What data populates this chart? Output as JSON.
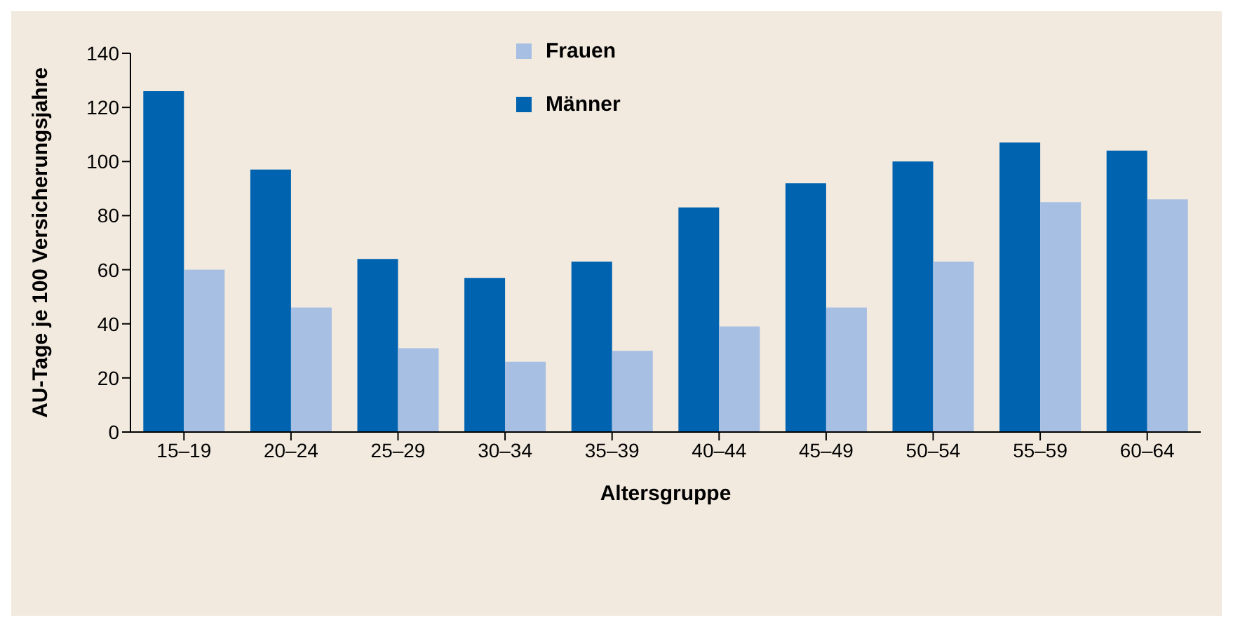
{
  "chart_data": {
    "type": "bar",
    "xlabel": "Altersgruppe",
    "ylabel": "AU-Tage je 100 Versicherungsjahre",
    "categories": [
      "15–19",
      "20–24",
      "25–29",
      "30–34",
      "35–39",
      "40–44",
      "45–49",
      "50–54",
      "55–59",
      "60–64"
    ],
    "series": [
      {
        "name": "Männer",
        "color": "#0063b0",
        "values": [
          126,
          97,
          64,
          57,
          63,
          83,
          92,
          100,
          107,
          104
        ]
      },
      {
        "name": "Frauen",
        "color": "#a7bfe3",
        "values": [
          60,
          46,
          31,
          26,
          30,
          39,
          46,
          63,
          85,
          86
        ]
      }
    ],
    "ylim": [
      0,
      140
    ],
    "yticks": [
      0,
      20,
      40,
      60,
      80,
      100,
      120,
      140
    ],
    "grid": false,
    "legend": "top"
  }
}
